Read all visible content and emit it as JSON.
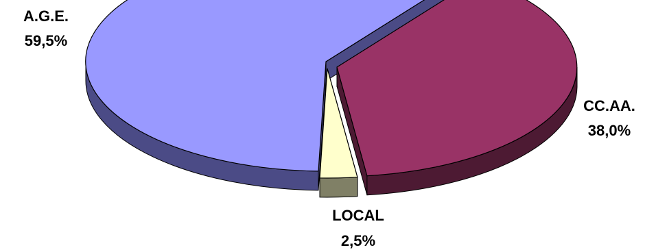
{
  "chart_data": {
    "type": "pie",
    "title": "",
    "slices": [
      {
        "label": "A.G.E.",
        "value": 59.5,
        "value_text": "59,5%",
        "color": "#9999ff",
        "side_color": "#4b4b86"
      },
      {
        "label": "CC.AA.",
        "value": 38.0,
        "value_text": "38,0%",
        "color": "#993366",
        "side_color": "#4d1a33"
      },
      {
        "label": "LOCAL",
        "value": 2.5,
        "value_text": "2,5%",
        "color": "#ffffcc",
        "side_color": "#808066"
      }
    ],
    "style": "3d-exploded",
    "legend": "none"
  }
}
